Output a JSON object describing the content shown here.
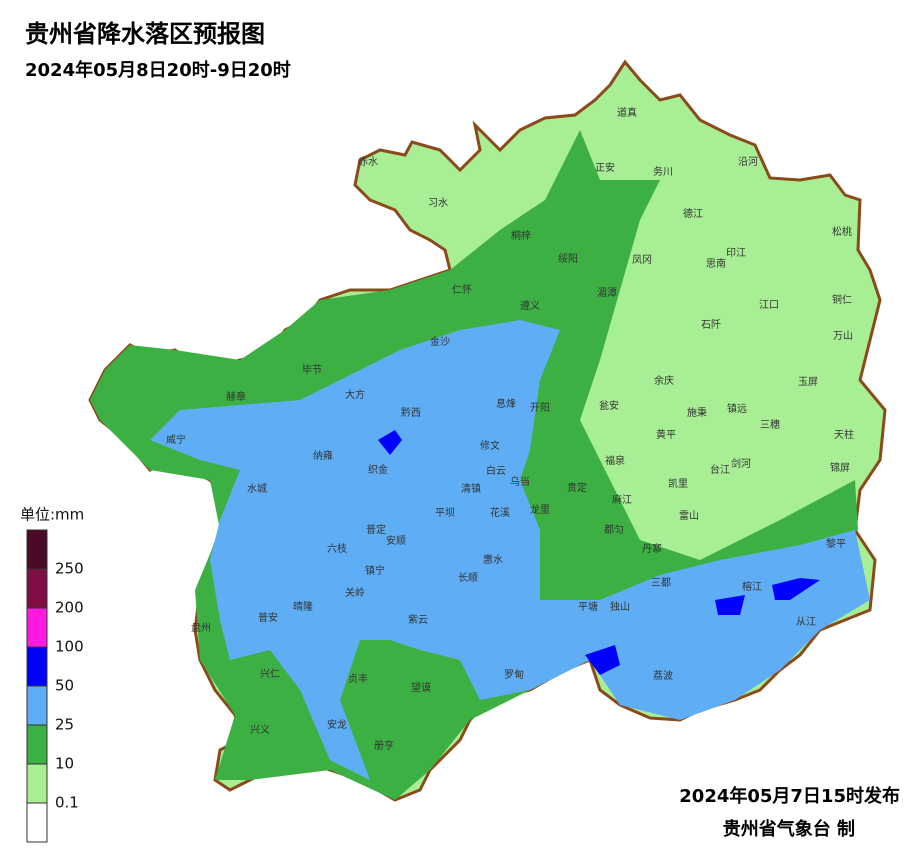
{
  "header": {
    "title": "贵州省降水落区预报图",
    "subtitle": "2024年05月8日20时-9日20时"
  },
  "legend": {
    "unit": "单位:mm",
    "colors": [
      "#4a0a28",
      "#7f0f45",
      "#ff1ae0",
      "#0000ff",
      "#5faef5",
      "#3cb043",
      "#a8ee95",
      "#ffffff"
    ],
    "labels": [
      "250",
      "200",
      "100",
      "50",
      "25",
      "10",
      "0.1"
    ]
  },
  "places": [
    "赤水",
    "习水",
    "道真",
    "正安",
    "务川",
    "沿河",
    "桐梓",
    "绥阳",
    "凤冈",
    "德江",
    "印江",
    "思南",
    "松桃",
    "仁怀",
    "遵义",
    "湄潭",
    "江口",
    "铜仁",
    "石阡",
    "万山",
    "金沙",
    "毕节",
    "大方",
    "赫章",
    "余庆",
    "玉屏",
    "息烽",
    "开阳",
    "瓮安",
    "施秉",
    "镇远",
    "黔西",
    "三穗",
    "天柱",
    "威宁",
    "黄平",
    "修文",
    "纳雍",
    "织金",
    "福泉",
    "台江",
    "剑河",
    "锦屏",
    "白云",
    "乌当",
    "清镇",
    "贵定",
    "麻江",
    "凯里",
    "水城",
    "花溪",
    "龙里",
    "平坝",
    "雷山",
    "都匀",
    "普定",
    "安顺",
    "六枝",
    "丹寨",
    "黎平",
    "镇宁",
    "惠水",
    "长顺",
    "三都",
    "关岭",
    "榕江",
    "平塘",
    "独山",
    "晴隆",
    "普安",
    "盘州",
    "紫云",
    "从江",
    "罗甸",
    "荔波",
    "兴仁",
    "贞丰",
    "望谟",
    "安龙",
    "兴义",
    "册亨"
  ],
  "footer": {
    "issued": "2024年05月7日15时发布",
    "agency": "贵州省气象台 制"
  }
}
